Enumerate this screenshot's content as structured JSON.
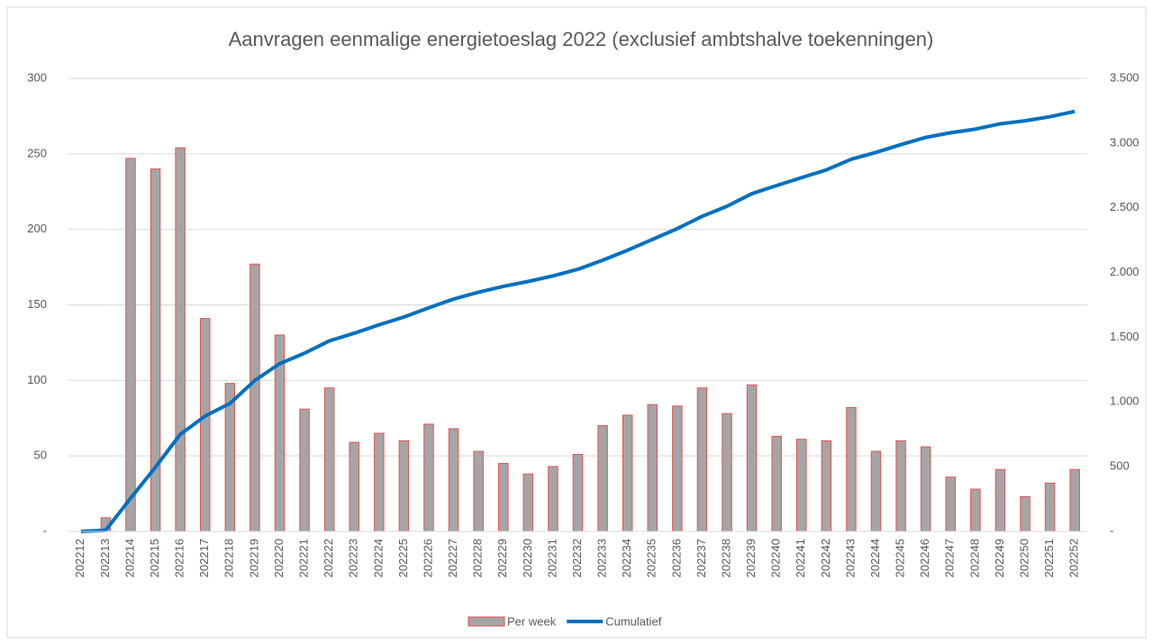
{
  "chart_data": {
    "type": "bar_line",
    "title": "Aanvragen eenmalige energietoeslag 2022 (exclusief ambtshalve toekenningen)",
    "categories": [
      "202212",
      "202213",
      "202214",
      "202215",
      "202216",
      "202217",
      "202218",
      "202219",
      "202220",
      "202221",
      "202222",
      "202223",
      "202224",
      "202225",
      "202226",
      "202227",
      "202228",
      "202229",
      "202230",
      "202231",
      "202232",
      "202233",
      "202234",
      "202235",
      "202236",
      "202237",
      "202238",
      "202239",
      "202240",
      "202241",
      "202242",
      "202243",
      "202244",
      "202245",
      "202246",
      "202247",
      "202248",
      "202249",
      "202250",
      "202251",
      "202252"
    ],
    "series": [
      {
        "name": "Per week",
        "type": "bar",
        "color": "#a5a5a5",
        "stroke": "#e8514f",
        "values": [
          0,
          9,
          247,
          240,
          254,
          141,
          98,
          177,
          130,
          81,
          95,
          59,
          65,
          60,
          71,
          68,
          53,
          45,
          38,
          43,
          51,
          70,
          77,
          84,
          83,
          95,
          78,
          97,
          63,
          61,
          60,
          82,
          53,
          60,
          56,
          36,
          28,
          41,
          23,
          32,
          41
        ]
      },
      {
        "name": "Cumulatief",
        "type": "line",
        "axis": "y2",
        "color": "#0070c0",
        "values": [
          0,
          9,
          256,
          496,
          750,
          891,
          989,
          1166,
          1296,
          1377,
          1472,
          1531,
          1596,
          1656,
          1727,
          1795,
          1848,
          1893,
          1931,
          1974,
          2025,
          2095,
          2172,
          2256,
          2339,
          2434,
          2512,
          2609,
          2672,
          2733,
          2793,
          2875,
          2928,
          2988,
          3044,
          3080,
          3108,
          3149,
          3172,
          3204,
          3245
        ]
      }
    ],
    "ylim": [
      0,
      300
    ],
    "yticks": [
      {
        "value": 0,
        "label": "-"
      },
      50,
      100,
      150,
      200,
      250,
      300
    ],
    "y2lim": [
      0,
      3500
    ],
    "y2ticks": [
      {
        "value": 0,
        "label": "-"
      },
      500,
      {
        "value": 1000,
        "label": "1.000"
      },
      {
        "value": 1500,
        "label": "1.500"
      },
      {
        "value": 2000,
        "label": "2.000"
      },
      {
        "value": 2500,
        "label": "2.500"
      },
      {
        "value": 3000,
        "label": "3.000"
      },
      {
        "value": 3500,
        "label": "3.500"
      }
    ],
    "grid": true,
    "legend": "bottom"
  }
}
